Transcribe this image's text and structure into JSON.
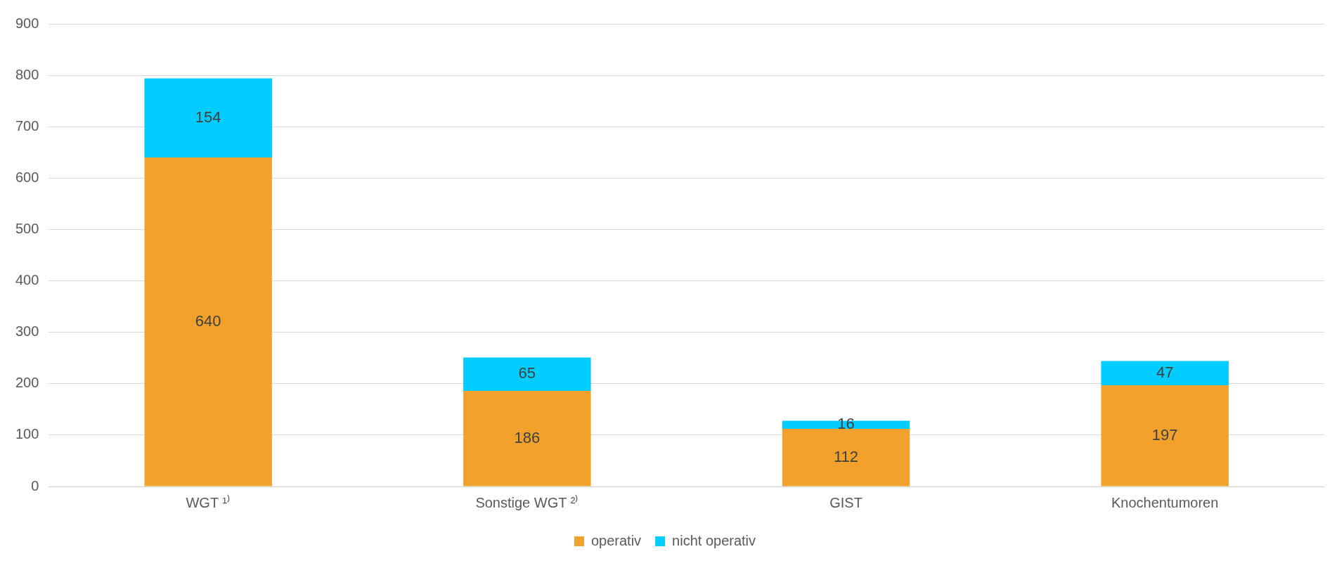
{
  "chart_data": {
    "type": "bar",
    "stacked": true,
    "categories": [
      "WGT ¹⁾",
      "Sonstige WGT ²⁾",
      "GIST",
      "Knochentumoren"
    ],
    "series": [
      {
        "name": "operativ",
        "color": "#f2a22c",
        "values": [
          640,
          186,
          112,
          197
        ]
      },
      {
        "name": "nicht operativ",
        "color": "#00ccff",
        "values": [
          154,
          65,
          16,
          47
        ]
      }
    ],
    "ylim": [
      0,
      900
    ],
    "yticks": [
      0,
      100,
      200,
      300,
      400,
      500,
      600,
      700,
      800,
      900
    ],
    "grid": "y",
    "legend": "bottom",
    "data_labels": true
  }
}
